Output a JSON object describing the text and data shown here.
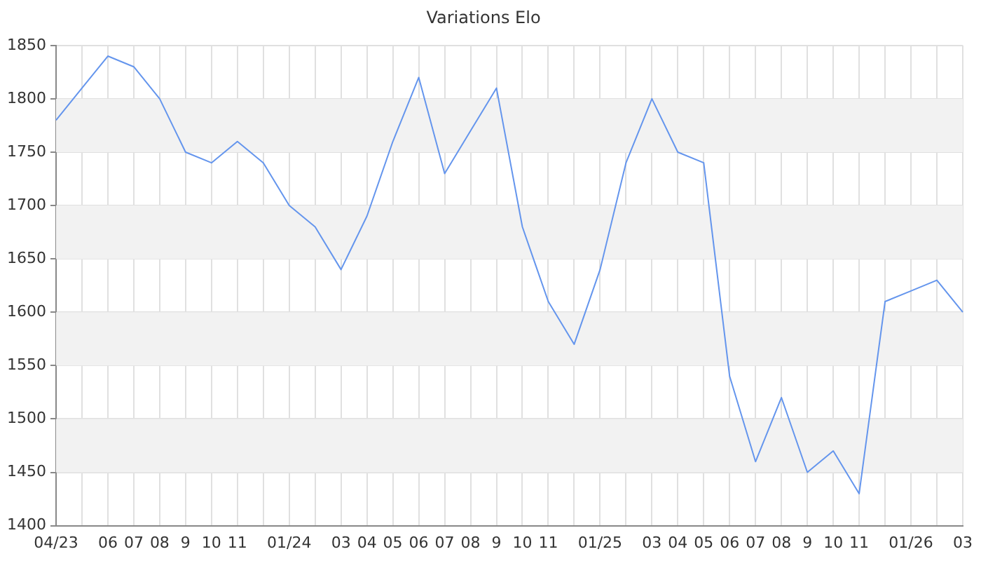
{
  "chart_data": {
    "type": "line",
    "title": "Variations Elo",
    "categories": [
      "04/23",
      null,
      "06",
      "07",
      "08",
      "9",
      "10",
      "11",
      null,
      "01/24",
      null,
      "03",
      "04",
      "05",
      "06",
      "07",
      "08",
      "9",
      "10",
      "11",
      null,
      "01/25",
      null,
      "03",
      "04",
      "05",
      "06",
      "07",
      "08",
      "9",
      "10",
      "11",
      null,
      "01/26",
      null,
      "03"
    ],
    "series": [
      {
        "color": "#6495ed",
        "values": [
          1780,
          1810,
          1840,
          1830,
          1800,
          1750,
          1740,
          1760,
          1740,
          1700,
          1680,
          1640,
          1690,
          1760,
          1820,
          1730,
          1770,
          1810,
          1680,
          1610,
          1570,
          1640,
          1740,
          1800,
          1750,
          1740,
          1540,
          1460,
          1520,
          1450,
          1470,
          1430,
          1610,
          1620,
          1630,
          1600
        ]
      }
    ],
    "ylim": [
      1400,
      1850
    ],
    "yticks": [
      1400,
      1450,
      1500,
      1550,
      1600,
      1650,
      1700,
      1750,
      1800,
      1850
    ],
    "grid": true,
    "legend": false,
    "marker": "none",
    "line_style": "solid"
  }
}
